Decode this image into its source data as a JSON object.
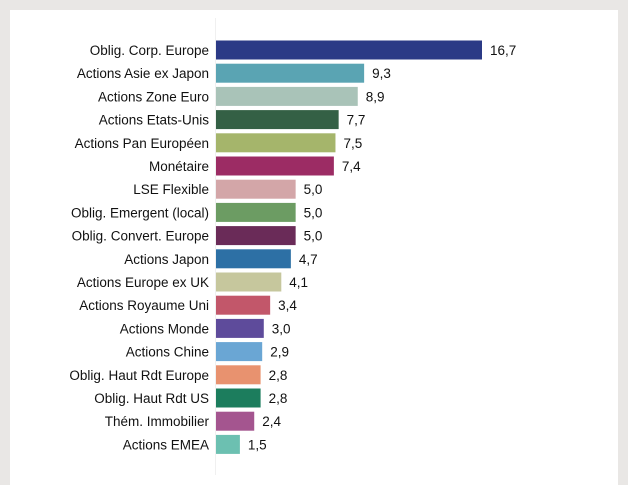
{
  "chart_data": {
    "type": "bar",
    "orientation": "horizontal",
    "title": "",
    "xlabel": "",
    "ylabel": "",
    "xlim": [
      0,
      16.7
    ],
    "grid": false,
    "legend": "none",
    "decimal_separator": ",",
    "categories": [
      "Oblig. Corp. Europe",
      "Actions Asie ex Japon",
      "Actions Zone Euro",
      "Actions Etats-Unis",
      "Actions Pan Européen",
      "Monétaire",
      "LSE Flexible",
      "Oblig. Emergent (local)",
      "Oblig. Convert. Europe",
      "Actions Japon",
      "Actions Europe ex UK",
      "Actions Royaume Uni",
      "Actions Monde",
      "Actions Chine",
      "Oblig. Haut Rdt Europe",
      "Oblig. Haut Rdt US",
      "Thém. Immobilier",
      "Actions EMEA"
    ],
    "values": [
      16.7,
      9.3,
      8.9,
      7.7,
      7.5,
      7.4,
      5.0,
      5.0,
      5.0,
      4.7,
      4.1,
      3.4,
      3.0,
      2.9,
      2.8,
      2.8,
      2.4,
      1.5
    ],
    "value_labels": [
      "16,7",
      "9,3",
      "8,9",
      "7,7",
      "7,5",
      "7,4",
      "5,0",
      "5,0",
      "5,0",
      "4,7",
      "4,1",
      "3,4",
      "3,0",
      "2,9",
      "2,8",
      "2,8",
      "2,4",
      "1,5"
    ],
    "colors": [
      "#2b3a86",
      "#5aa4b3",
      "#a9c3b8",
      "#346045",
      "#a5b56b",
      "#9c2c64",
      "#d3a6a8",
      "#6c9c63",
      "#6a2b58",
      "#2d70a5",
      "#c6c79d",
      "#c2576a",
      "#5e4b9b",
      "#6aa6d4",
      "#e8926f",
      "#1c7d5d",
      "#a4558f",
      "#6cc0b1"
    ]
  }
}
